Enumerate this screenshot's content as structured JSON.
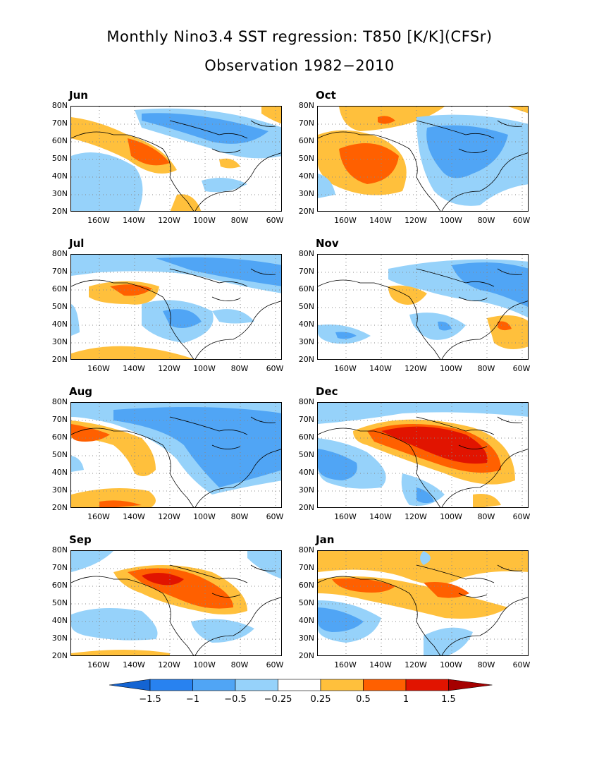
{
  "title_line1": "Monthly Nino3.4 SST regression: T850 [K/K](CFSr)",
  "title_line2": "Observation 1982−2010",
  "lat_labels": [
    "80N",
    "70N",
    "60N",
    "50N",
    "40N",
    "30N",
    "20N"
  ],
  "lon_labels": [
    "160W",
    "140W",
    "120W",
    "100W",
    "80W",
    "60W"
  ],
  "panels": [
    {
      "name": "Jun"
    },
    {
      "name": "Oct"
    },
    {
      "name": "Jul"
    },
    {
      "name": "Nov"
    },
    {
      "name": "Aug"
    },
    {
      "name": "Dec"
    },
    {
      "name": "Sep"
    },
    {
      "name": "Jan"
    }
  ],
  "colorbar": {
    "levels": [
      "−1.5",
      "−1",
      "−0.5",
      "−0.25",
      "0.25",
      "0.5",
      "1",
      "1.5"
    ],
    "colors": [
      "#1464d2",
      "#2882f0",
      "#50a5f5",
      "#96d2fa",
      "#ffffff",
      "#ffc03c",
      "#ff6000",
      "#e11400",
      "#a50000"
    ]
  }
}
